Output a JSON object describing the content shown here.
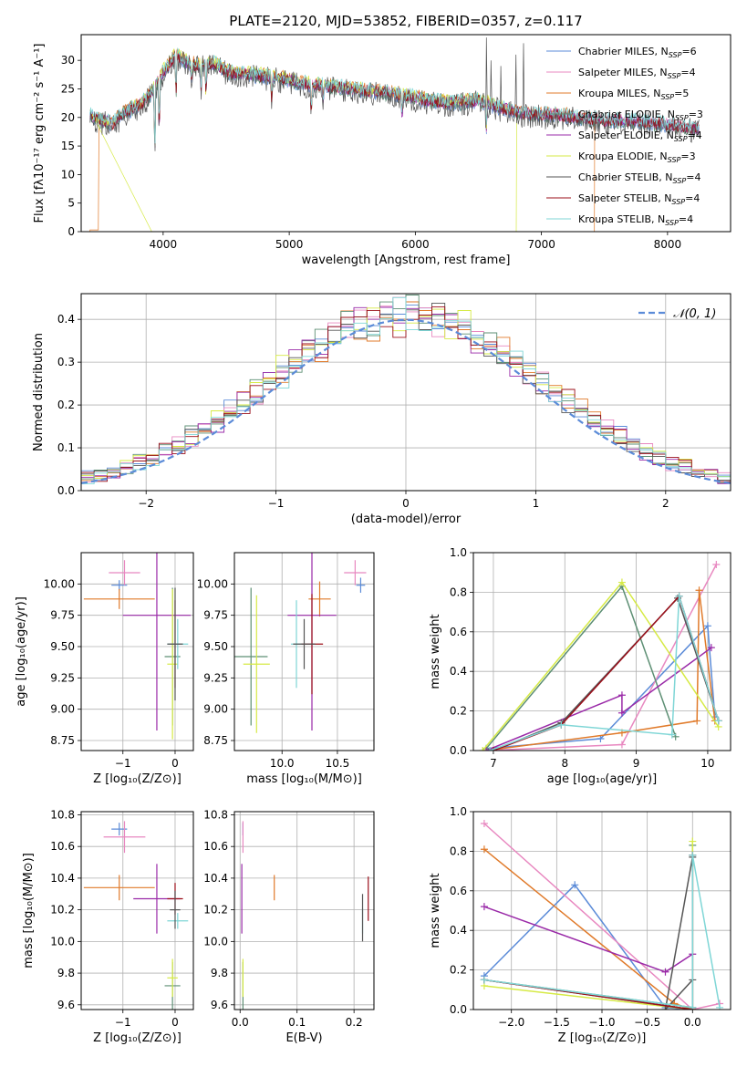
{
  "figure_title": "PLATE=2120, MJD=53852, FIBERID=0357, z=0.117",
  "colors": {
    "Chabrier MILES": "#5b8bd8",
    "Salpeter MILES": "#e888c0",
    "Kroupa MILES": "#e07a2a",
    "Chabrier ELODIE": "#5d8f74",
    "Salpeter ELODIE": "#9a2aa8",
    "Kroupa ELODIE": "#d6ea45",
    "Chabrier STELIB": "#555555",
    "Salpeter STELIB": "#9b0f1a",
    "Kroupa STELIB": "#7fd6d6",
    "normal_curve": "#5b8bd8"
  },
  "chart_data": [
    {
      "id": "spectrum",
      "type": "line",
      "title": "PLATE=2120, MJD=53852, FIBERID=0357, z=0.117",
      "xlabel": "wavelength [Angstrom, rest frame]",
      "ylabel": "Flux [fλ10⁻¹⁷ erg cm⁻² s⁻¹ A⁻¹]",
      "xlim": [
        3350,
        8500
      ],
      "ylim": [
        0,
        34.5
      ],
      "xticks": [
        4000,
        5000,
        6000,
        7000,
        8000
      ],
      "yticks": [
        0,
        5,
        10,
        15,
        20,
        25,
        30
      ],
      "legend_position": "upper-right",
      "legend": [
        {
          "label": "Chabrier MILES, N",
          "sub": "SSP",
          "n": "=6"
        },
        {
          "label": "Salpeter MILES, N",
          "sub": "SSP",
          "n": "=4"
        },
        {
          "label": "Kroupa MILES, N",
          "sub": "SSP",
          "n": "=5"
        },
        {
          "label": "Chabrier ELODIE, N",
          "sub": "SSP",
          "n": "=3"
        },
        {
          "label": "Salpeter ELODIE, N",
          "sub": "SSP",
          "n": "=4"
        },
        {
          "label": "Kroupa ELODIE, N",
          "sub": "SSP",
          "n": "=3"
        },
        {
          "label": "Chabrier STELIB, N",
          "sub": "SSP",
          "n": "=4"
        },
        {
          "label": "Salpeter STELIB, N",
          "sub": "SSP",
          "n": "=4"
        },
        {
          "label": "Kroupa STELIB, N",
          "sub": "SSP",
          "n": "=4"
        }
      ],
      "continuum": [
        [
          3420,
          20.5
        ],
        [
          3500,
          19.5
        ],
        [
          3600,
          19
        ],
        [
          3700,
          21
        ],
        [
          3800,
          22
        ],
        [
          3900,
          24
        ],
        [
          4000,
          28
        ],
        [
          4100,
          31
        ],
        [
          4200,
          29.5
        ],
        [
          4300,
          29
        ],
        [
          4400,
          29.5
        ],
        [
          4500,
          28
        ],
        [
          4700,
          27.5
        ],
        [
          4900,
          27
        ],
        [
          5100,
          26
        ],
        [
          5300,
          25.5
        ],
        [
          5500,
          25
        ],
        [
          5700,
          24.5
        ],
        [
          5900,
          24
        ],
        [
          6100,
          23
        ],
        [
          6300,
          22.5
        ],
        [
          6500,
          23
        ],
        [
          6700,
          21.5
        ],
        [
          6900,
          20.5
        ],
        [
          7100,
          20.5
        ],
        [
          7300,
          20
        ],
        [
          7500,
          19.5
        ],
        [
          7700,
          19.5
        ],
        [
          7900,
          19
        ],
        [
          8100,
          18.5
        ],
        [
          8250,
          18
        ]
      ],
      "absorption": [
        [
          3934,
          13
        ],
        [
          3969,
          11
        ],
        [
          4102,
          8
        ],
        [
          4227,
          3
        ],
        [
          4300,
          5
        ],
        [
          4340,
          6
        ],
        [
          4861,
          4
        ],
        [
          5175,
          6
        ],
        [
          5270,
          3
        ],
        [
          5895,
          5
        ],
        [
          6563,
          5
        ]
      ],
      "spikes": [
        [
          6563,
          34
        ],
        [
          6600,
          30
        ],
        [
          6680,
          29
        ],
        [
          6800,
          31
        ],
        [
          6860,
          33
        ]
      ],
      "drop_edges": [
        {
          "series": "Kroupa MILES",
          "start": 3420,
          "end": 7420,
          "low_x": [
            3420,
            3490
          ]
        },
        {
          "series": "Kroupa ELODIE",
          "start": 3910,
          "end": 6800,
          "low_x": []
        }
      ]
    },
    {
      "id": "residuals",
      "type": "histogram",
      "xlabel": "(data-model)/error",
      "ylabel": "Normed distribution",
      "xlim": [
        -2.5,
        2.5
      ],
      "ylim": [
        0,
        0.46
      ],
      "xticks": [
        -2,
        -1,
        0,
        1,
        2
      ],
      "yticks": [
        0.0,
        0.1,
        0.2,
        0.3,
        0.4
      ],
      "grid": true,
      "bin_width": 0.1,
      "normal_label": "𝒩(0, 1)",
      "legend_position": "upper-right"
    },
    {
      "id": "age-vs-Z",
      "type": "scatter",
      "xlabel": "Z [log₁₀(Z/Z⊙)]",
      "ylabel": "age  [log₁₀(age/yr)]",
      "xlim": [
        -1.8,
        0.35
      ],
      "ylim": [
        8.67,
        10.25
      ],
      "xticks": [
        -1,
        0
      ],
      "yticks": [
        8.75,
        9.0,
        9.25,
        9.5,
        9.75,
        10.0
      ],
      "grid": true,
      "points": [
        {
          "series": "Chabrier MILES",
          "x": -1.07,
          "y": 9.99,
          "xerr": 0.15,
          "yerr": 0.04
        },
        {
          "series": "Salpeter MILES",
          "x": -0.97,
          "y": 10.09,
          "xerr": 0.3,
          "yerr": 0.1
        },
        {
          "series": "Kroupa MILES",
          "x": -1.07,
          "y": 9.88,
          "xerr": 0.68,
          "yerr": 0.08
        },
        {
          "series": "Salpeter ELODIE",
          "x": -0.35,
          "y": 9.75,
          "xerr": 0.65,
          "yerr": 0.92
        },
        {
          "series": "Chabrier ELODIE",
          "x": -0.05,
          "y": 9.42,
          "xerr": 0.15,
          "yerr": 0.55
        },
        {
          "series": "Kroupa ELODIE",
          "x": -0.05,
          "y": 9.36,
          "xerr": 0.1,
          "yerr": 0.6
        },
        {
          "series": "Salpeter STELIB",
          "x": 0.0,
          "y": 9.52,
          "xerr": 0.1,
          "yerr": 0.35
        },
        {
          "series": "Kroupa STELIB",
          "x": 0.05,
          "y": 9.52,
          "xerr": 0.2,
          "yerr": 0.2
        },
        {
          "series": "Chabrier STELIB",
          "x": 0.0,
          "y": 9.52,
          "xerr": 0.15,
          "yerr": 0.45
        }
      ]
    },
    {
      "id": "age-vs-mass",
      "type": "scatter",
      "xlabel": "mass [log₁₀(M/M⊙)]",
      "ylabel": "",
      "xlim": [
        9.57,
        10.83
      ],
      "ylim": [
        8.67,
        10.25
      ],
      "xticks": [
        10.0,
        10.5
      ],
      "yticks": [
        8.75,
        9.0,
        9.25,
        9.5,
        9.75,
        10.0
      ],
      "grid": true,
      "points": [
        {
          "series": "Chabrier MILES",
          "x": 10.71,
          "y": 9.99,
          "xerr": 0.04,
          "yerr": 0.06
        },
        {
          "series": "Salpeter MILES",
          "x": 10.66,
          "y": 10.09,
          "xerr": 0.1,
          "yerr": 0.1
        },
        {
          "series": "Kroupa MILES",
          "x": 10.34,
          "y": 9.88,
          "xerr": 0.1,
          "yerr": 0.14
        },
        {
          "series": "Salpeter ELODIE",
          "x": 10.27,
          "y": 9.75,
          "xerr": 0.22,
          "yerr": 0.92
        },
        {
          "series": "Chabrier ELODIE",
          "x": 9.72,
          "y": 9.42,
          "xerr": 0.15,
          "yerr": 0.55
        },
        {
          "series": "Kroupa ELODIE",
          "x": 9.77,
          "y": 9.36,
          "xerr": 0.12,
          "yerr": 0.55
        },
        {
          "series": "Salpeter STELIB",
          "x": 10.27,
          "y": 9.52,
          "xerr": 0.1,
          "yerr": 0.4
        },
        {
          "series": "Kroupa STELIB",
          "x": 10.13,
          "y": 9.52,
          "xerr": 0.05,
          "yerr": 0.35
        },
        {
          "series": "Chabrier STELIB",
          "x": 10.2,
          "y": 9.52,
          "xerr": 0.1,
          "yerr": 0.2
        }
      ]
    },
    {
      "id": "massweight-vs-age",
      "type": "line",
      "xlabel": "age  [log₁₀(age/yr)]",
      "ylabel": "mass weight",
      "xlim": [
        6.72,
        10.32
      ],
      "ylim": [
        0,
        1.0
      ],
      "xticks": [
        7,
        8,
        9,
        10
      ],
      "yticks": [
        0.0,
        0.2,
        0.4,
        0.6,
        0.8,
        1.0
      ],
      "grid": true,
      "series": [
        {
          "name": "Chabrier MILES",
          "x": [
            6.9,
            8.5,
            10.0,
            10.1
          ],
          "y": [
            0.01,
            0.06,
            0.63,
            0.17
          ]
        },
        {
          "name": "Salpeter MILES",
          "x": [
            6.9,
            8.8,
            10.12
          ],
          "y": [
            0.0,
            0.03,
            0.94
          ]
        },
        {
          "name": "Kroupa MILES",
          "x": [
            6.9,
            8.8,
            9.85,
            9.88,
            10.1
          ],
          "y": [
            0.0,
            0.09,
            0.15,
            0.81,
            0.15
          ]
        },
        {
          "name": "Chabrier ELODIE",
          "x": [
            6.9,
            8.8,
            9.55
          ],
          "y": [
            0.01,
            0.83,
            0.07
          ]
        },
        {
          "name": "Salpeter ELODIE",
          "x": [
            6.9,
            8.8,
            8.8,
            10.05
          ],
          "y": [
            0.0,
            0.28,
            0.19,
            0.52
          ]
        },
        {
          "name": "Kroupa ELODIE",
          "x": [
            6.85,
            8.8,
            10.15
          ],
          "y": [
            0.0,
            0.85,
            0.12
          ]
        },
        {
          "name": "Chabrier STELIB",
          "x": [
            7.0,
            7.95,
            9.58,
            10.15
          ],
          "y": [
            0.0,
            0.14,
            0.77,
            0.15
          ]
        },
        {
          "name": "Salpeter STELIB",
          "x": [
            7.0,
            7.95,
            9.6,
            10.15
          ],
          "y": [
            0.0,
            0.13,
            0.78,
            0.15
          ]
        },
        {
          "name": "Kroupa STELIB",
          "x": [
            6.95,
            7.95,
            9.5,
            9.6,
            10.15
          ],
          "y": [
            0.0,
            0.13,
            0.08,
            0.78,
            0.15
          ]
        }
      ]
    },
    {
      "id": "mass-vs-Z",
      "type": "scatter",
      "xlabel": "Z [log₁₀(Z/Z⊙)]",
      "ylabel": "mass [log₁₀(M/M⊙)]",
      "xlim": [
        -1.8,
        0.35
      ],
      "ylim": [
        9.57,
        10.82
      ],
      "xticks": [
        -1,
        0
      ],
      "yticks": [
        9.6,
        9.8,
        10.0,
        10.2,
        10.4,
        10.6,
        10.8
      ],
      "grid": true,
      "points": [
        {
          "series": "Chabrier MILES",
          "x": -1.07,
          "y": 10.71,
          "xerr": 0.15,
          "yerr": 0.04
        },
        {
          "series": "Salpeter MILES",
          "x": -0.97,
          "y": 10.66,
          "xerr": 0.4,
          "yerr": 0.1
        },
        {
          "series": "Kroupa MILES",
          "x": -1.07,
          "y": 10.34,
          "xerr": 0.68,
          "yerr": 0.08
        },
        {
          "series": "Salpeter ELODIE",
          "x": -0.35,
          "y": 10.27,
          "xerr": 0.45,
          "yerr": 0.22
        },
        {
          "series": "Chabrier ELODIE",
          "x": -0.05,
          "y": 9.72,
          "xerr": 0.15,
          "yerr": 0.15
        },
        {
          "series": "Kroupa ELODIE",
          "x": -0.05,
          "y": 9.77,
          "xerr": 0.1,
          "yerr": 0.12
        },
        {
          "series": "Salpeter STELIB",
          "x": 0.0,
          "y": 10.27,
          "xerr": 0.15,
          "yerr": 0.1
        },
        {
          "series": "Kroupa STELIB",
          "x": 0.05,
          "y": 10.13,
          "xerr": 0.2,
          "yerr": 0.05
        },
        {
          "series": "Chabrier STELIB",
          "x": 0.0,
          "y": 10.2,
          "xerr": 0.1,
          "yerr": 0.12
        }
      ]
    },
    {
      "id": "mass-vs-EBV",
      "type": "scatter",
      "xlabel": "E(B-V)",
      "ylabel": "",
      "xlim": [
        -0.01,
        0.235
      ],
      "ylim": [
        9.57,
        10.82
      ],
      "xticks": [
        0.0,
        0.1,
        0.2
      ],
      "yticks": [
        9.6,
        9.8,
        10.0,
        10.2,
        10.4,
        10.6,
        10.8
      ],
      "grid": true,
      "points": [
        {
          "series": "Chabrier MILES",
          "x": 0.005,
          "y": 10.71,
          "xerr": 0,
          "yerr": 0.04
        },
        {
          "series": "Salpeter MILES",
          "x": 0.005,
          "y": 10.66,
          "xerr": 0,
          "yerr": 0.1
        },
        {
          "series": "Kroupa MILES",
          "x": 0.06,
          "y": 10.34,
          "xerr": 0,
          "yerr": 0.08
        },
        {
          "series": "Salpeter ELODIE",
          "x": 0.003,
          "y": 10.27,
          "xerr": 0,
          "yerr": 0.22
        },
        {
          "series": "Chabrier ELODIE",
          "x": 0.005,
          "y": 9.72,
          "xerr": 0,
          "yerr": 0.15
        },
        {
          "series": "Kroupa ELODIE",
          "x": 0.005,
          "y": 9.77,
          "xerr": 0,
          "yerr": 0.12
        },
        {
          "series": "Salpeter STELIB",
          "x": 0.225,
          "y": 10.27,
          "xerr": 0,
          "yerr": 0.14
        },
        {
          "series": "Kroupa STELIB",
          "x": 0.215,
          "y": 10.13,
          "xerr": 0,
          "yerr": 0.08
        },
        {
          "series": "Chabrier STELIB",
          "x": 0.215,
          "y": 10.15,
          "xerr": 0,
          "yerr": 0.15
        }
      ]
    },
    {
      "id": "massweight-vs-Z",
      "type": "line",
      "xlabel": "Z [log₁₀(Z/Z⊙)]",
      "ylabel": "mass weight",
      "xlim": [
        -2.42,
        0.42
      ],
      "ylim": [
        0,
        1.0
      ],
      "xticks": [
        -2.0,
        -1.5,
        -1.0,
        -0.5,
        0.0
      ],
      "yticks": [
        0.0,
        0.2,
        0.4,
        0.6,
        0.8,
        1.0
      ],
      "grid": true,
      "series": [
        {
          "name": "Chabrier MILES",
          "x": [
            -2.3,
            -1.3,
            -0.3,
            0.0
          ],
          "y": [
            0.17,
            0.63,
            0.01,
            0.0
          ]
        },
        {
          "name": "Salpeter MILES",
          "x": [
            -2.3,
            0.0,
            0.3
          ],
          "y": [
            0.94,
            0.0,
            0.03
          ]
        },
        {
          "name": "Kroupa MILES",
          "x": [
            -2.3,
            -0.2,
            0.0
          ],
          "y": [
            0.81,
            0.03,
            0.0
          ]
        },
        {
          "name": "Chabrier ELODIE",
          "x": [
            -2.3,
            0.0,
            0.0
          ],
          "y": [
            0.15,
            0.01,
            0.83
          ]
        },
        {
          "name": "Salpeter ELODIE",
          "x": [
            -2.3,
            -0.3,
            0.0
          ],
          "y": [
            0.52,
            0.19,
            0.28
          ]
        },
        {
          "name": "Kroupa ELODIE",
          "x": [
            -2.3,
            0.0,
            0.0
          ],
          "y": [
            0.12,
            0.0,
            0.85
          ]
        },
        {
          "name": "Chabrier STELIB",
          "x": [
            -2.3,
            0.0,
            0.0,
            -0.3,
            0.0
          ],
          "y": [
            0.15,
            0.0,
            0.77,
            0.0,
            0.15
          ]
        },
        {
          "name": "Salpeter STELIB",
          "x": [
            -2.3,
            0.0,
            0.0
          ],
          "y": [
            0.15,
            0.0,
            0.78
          ]
        },
        {
          "name": "Kroupa STELIB",
          "x": [
            -2.3,
            0.0,
            0.0,
            0.3
          ],
          "y": [
            0.15,
            0.01,
            0.78,
            0.01
          ]
        }
      ]
    }
  ]
}
